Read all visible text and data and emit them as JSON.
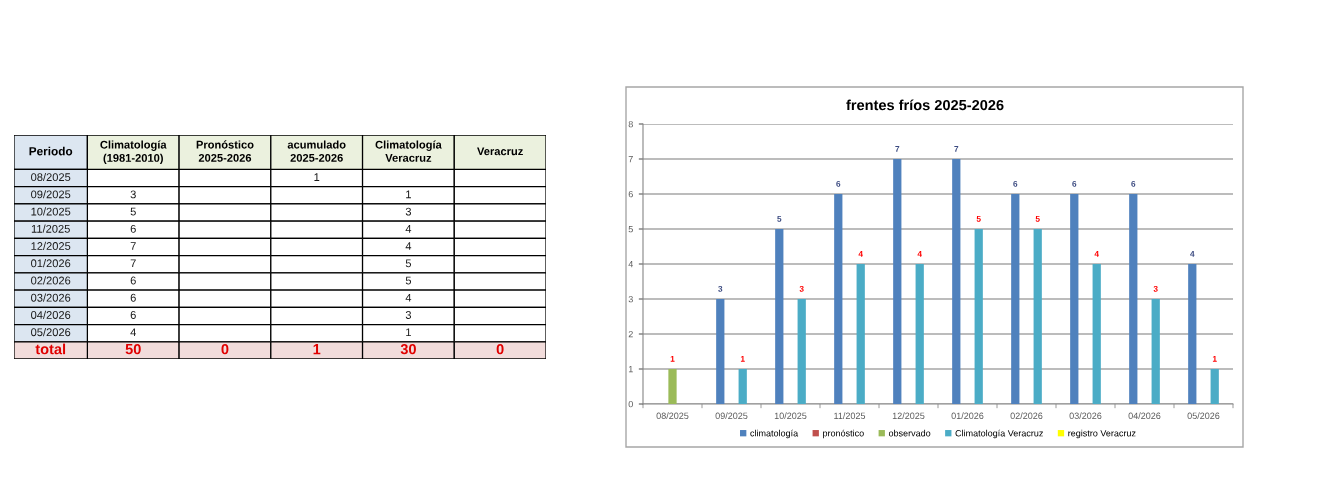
{
  "chart_data": [
    {
      "type": "heatmap",
      "ylabel": "Periodo",
      "categories": [
        "Climatología\n(1981-2010)",
        "Pronóstico\n2025-2026",
        "acumulado\n2025-2026",
        "Climatología\nVeracruz",
        "Veracruz"
      ],
      "y_categories": [
        "08/2025",
        "09/2025",
        "10/2025",
        "11/2025",
        "12/2025",
        "01/2026",
        "02/2026",
        "03/2026",
        "04/2026",
        "05/2026",
        "total"
      ],
      "cells": [
        [
          null,
          null,
          1,
          null,
          null
        ],
        [
          3,
          null,
          null,
          1,
          null
        ],
        [
          5,
          null,
          null,
          3,
          null
        ],
        [
          6,
          null,
          null,
          4,
          null
        ],
        [
          7,
          null,
          null,
          4,
          null
        ],
        [
          7,
          null,
          null,
          5,
          null
        ],
        [
          6,
          null,
          null,
          5,
          null
        ],
        [
          6,
          null,
          null,
          4,
          null
        ],
        [
          6,
          null,
          null,
          3,
          null
        ],
        [
          4,
          null,
          null,
          1,
          null
        ],
        [
          50,
          0,
          1,
          30,
          0
        ]
      ],
      "data_labels": true
    },
    {
      "type": "bar",
      "title": "frentes fríos 2025-2026",
      "categories": [
        "08/2025",
        "09/2025",
        "10/2025",
        "11/2025",
        "12/2025",
        "01/2026",
        "02/2026",
        "03/2026",
        "04/2026",
        "05/2026"
      ],
      "series": [
        {
          "name": "climatología",
          "color": "#4f81bd",
          "values": [
            null,
            3,
            5,
            6,
            7,
            7,
            6,
            6,
            6,
            4
          ]
        },
        {
          "name": "pronóstico",
          "color": "#c0504d",
          "values": [
            null,
            null,
            null,
            null,
            null,
            null,
            null,
            null,
            null,
            null
          ]
        },
        {
          "name": "observado",
          "color": "#9bbb59",
          "values": [
            1,
            null,
            null,
            null,
            null,
            null,
            null,
            null,
            null,
            null
          ]
        },
        {
          "name": "Climatología Veracruz",
          "color": "#4bacc6",
          "values": [
            null,
            1,
            3,
            4,
            4,
            5,
            5,
            4,
            3,
            1
          ]
        },
        {
          "name": "registro Veracruz",
          "color": "#ffff00",
          "values": [
            null,
            null,
            null,
            null,
            null,
            null,
            null,
            null,
            null,
            null
          ]
        }
      ],
      "ylim": [
        0,
        8
      ],
      "yticks": [
        0,
        1,
        2,
        3,
        4,
        5,
        6,
        7,
        8
      ],
      "grid": "y",
      "legend": "bottom",
      "data_labels": true
    }
  ]
}
